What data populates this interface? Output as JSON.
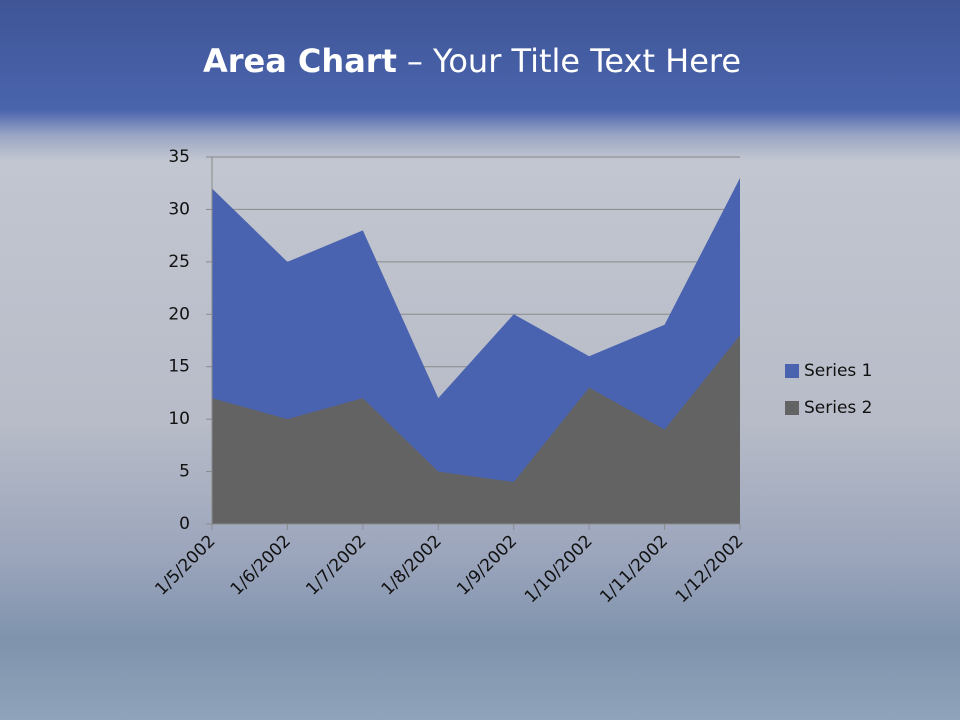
{
  "chart_data": {
    "type": "area",
    "title": [
      "Area Chart",
      "– Your Title Text Here"
    ],
    "categories": [
      "1/5/2002",
      "1/6/2002",
      "1/7/2002",
      "1/8/2002",
      "1/9/2002",
      "1/10/2002",
      "1/11/2002",
      "1/12/2002"
    ],
    "series": [
      {
        "name": "Series 1",
        "color": "#4a63b0",
        "values": [
          32,
          25,
          28,
          12,
          20,
          16,
          19,
          33
        ]
      },
      {
        "name": "Series 2",
        "color": "#636363",
        "values": [
          12,
          10,
          12,
          5,
          4,
          13,
          9,
          18
        ]
      }
    ],
    "ylim": [
      0,
      35
    ],
    "yticks": [
      0,
      5,
      10,
      15,
      20,
      25,
      30,
      35
    ],
    "grid": true,
    "legend": "right"
  }
}
